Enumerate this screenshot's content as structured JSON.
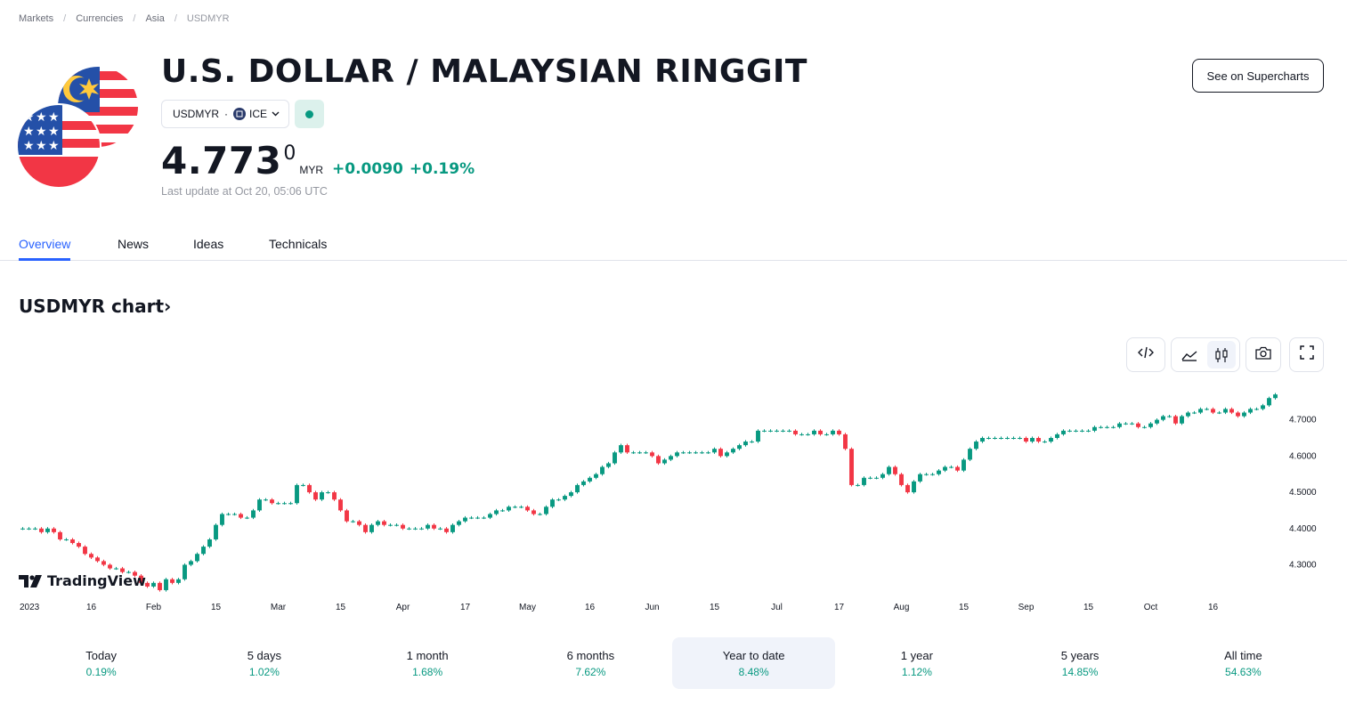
{
  "breadcrumb": [
    "Markets",
    "Currencies",
    "Asia",
    "USDMYR"
  ],
  "title": "U.S. DOLLAR / MALAYSIAN RINGGIT",
  "supercharts_button": "See on Supercharts",
  "symbol": {
    "ticker": "USDMYR",
    "exchange": "ICE"
  },
  "price": {
    "main": "4.773",
    "superscript": "0",
    "currency": "MYR",
    "change": "+0.0090",
    "change_percent": "+0.19%"
  },
  "last_update": "Last update at Oct 20, 05:06 UTC",
  "tabs": [
    {
      "label": "Overview",
      "active": true
    },
    {
      "label": "News",
      "active": false
    },
    {
      "label": "Ideas",
      "active": false
    },
    {
      "label": "Technicals",
      "active": false
    }
  ],
  "chart_heading": "USDMYR chart",
  "chart_heading_arrow": "›",
  "tv_brand": "TradingView",
  "chart_data": {
    "type": "candlestick",
    "y_ticks": [
      "4.7000",
      "4.6000",
      "4.5000",
      "4.4000",
      "4.3000"
    ],
    "y_tick_values": [
      4.7,
      4.6,
      4.5,
      4.4,
      4.3
    ],
    "ylim": [
      4.225,
      4.79
    ],
    "x_tick_labels": [
      "2023",
      "16",
      "Feb",
      "15",
      "Mar",
      "15",
      "Apr",
      "17",
      "May",
      "16",
      "Jun",
      "15",
      "Jul",
      "17",
      "Aug",
      "15",
      "Sep",
      "15",
      "Oct",
      "16"
    ],
    "x_ticks_at_candle": [
      0,
      11,
      21,
      31,
      41,
      51,
      61,
      71,
      81,
      91,
      101,
      111,
      121,
      131,
      141,
      151,
      161,
      171,
      181,
      191
    ],
    "closes": [
      4.4,
      4.4,
      4.4,
      4.39,
      4.4,
      4.39,
      4.37,
      4.37,
      4.36,
      4.35,
      4.33,
      4.32,
      4.31,
      4.3,
      4.29,
      4.29,
      4.28,
      4.28,
      4.27,
      4.25,
      4.24,
      4.25,
      4.23,
      4.26,
      4.25,
      4.26,
      4.3,
      4.31,
      4.33,
      4.35,
      4.37,
      4.41,
      4.44,
      4.44,
      4.44,
      4.43,
      4.43,
      4.45,
      4.48,
      4.48,
      4.47,
      4.47,
      4.47,
      4.47,
      4.52,
      4.52,
      4.5,
      4.48,
      4.5,
      4.5,
      4.48,
      4.45,
      4.42,
      4.42,
      4.41,
      4.39,
      4.41,
      4.42,
      4.41,
      4.41,
      4.41,
      4.4,
      4.4,
      4.4,
      4.4,
      4.41,
      4.4,
      4.4,
      4.39,
      4.41,
      4.42,
      4.43,
      4.43,
      4.43,
      4.43,
      4.44,
      4.45,
      4.45,
      4.46,
      4.46,
      4.46,
      4.45,
      4.44,
      4.44,
      4.46,
      4.48,
      4.48,
      4.49,
      4.5,
      4.52,
      4.53,
      4.54,
      4.55,
      4.57,
      4.58,
      4.61,
      4.63,
      4.61,
      4.61,
      4.61,
      4.61,
      4.6,
      4.58,
      4.59,
      4.6,
      4.61,
      4.61,
      4.61,
      4.61,
      4.61,
      4.61,
      4.62,
      4.6,
      4.61,
      4.62,
      4.63,
      4.64,
      4.64,
      4.67,
      4.67,
      4.67,
      4.67,
      4.67,
      4.67,
      4.66,
      4.66,
      4.66,
      4.67,
      4.66,
      4.66,
      4.67,
      4.66,
      4.62,
      4.52,
      4.52,
      4.54,
      4.54,
      4.54,
      4.55,
      4.57,
      4.55,
      4.52,
      4.5,
      4.53,
      4.55,
      4.55,
      4.55,
      4.56,
      4.57,
      4.57,
      4.56,
      4.59,
      4.62,
      4.64,
      4.65,
      4.65,
      4.65,
      4.65,
      4.65,
      4.65,
      4.65,
      4.64,
      4.65,
      4.64,
      4.64,
      4.65,
      4.66,
      4.67,
      4.67,
      4.67,
      4.67,
      4.67,
      4.68,
      4.68,
      4.68,
      4.68,
      4.69,
      4.69,
      4.69,
      4.68,
      4.68,
      4.69,
      4.7,
      4.71,
      4.71,
      4.69,
      4.71,
      4.72,
      4.72,
      4.73,
      4.73,
      4.72,
      4.72,
      4.73,
      4.72,
      4.71,
      4.72,
      4.73,
      4.73,
      4.74,
      4.76,
      4.77
    ]
  },
  "periods": [
    {
      "label": "Today",
      "value": "0.19%",
      "active": false
    },
    {
      "label": "5 days",
      "value": "1.02%",
      "active": false
    },
    {
      "label": "1 month",
      "value": "1.68%",
      "active": false
    },
    {
      "label": "6 months",
      "value": "7.62%",
      "active": false
    },
    {
      "label": "Year to date",
      "value": "8.48%",
      "active": true
    },
    {
      "label": "1 year",
      "value": "1.12%",
      "active": false
    },
    {
      "label": "5 years",
      "value": "14.85%",
      "active": false
    },
    {
      "label": "All time",
      "value": "54.63%",
      "active": false
    }
  ],
  "colors": {
    "up": "#089981",
    "down": "#f23645",
    "accent": "#2962ff",
    "text": "#131722"
  },
  "icons": [
    "code-embed-icon",
    "area-chart-icon",
    "candles-icon",
    "camera-icon",
    "fullscreen-icon",
    "chevron-down-icon",
    "exchange-icon"
  ]
}
